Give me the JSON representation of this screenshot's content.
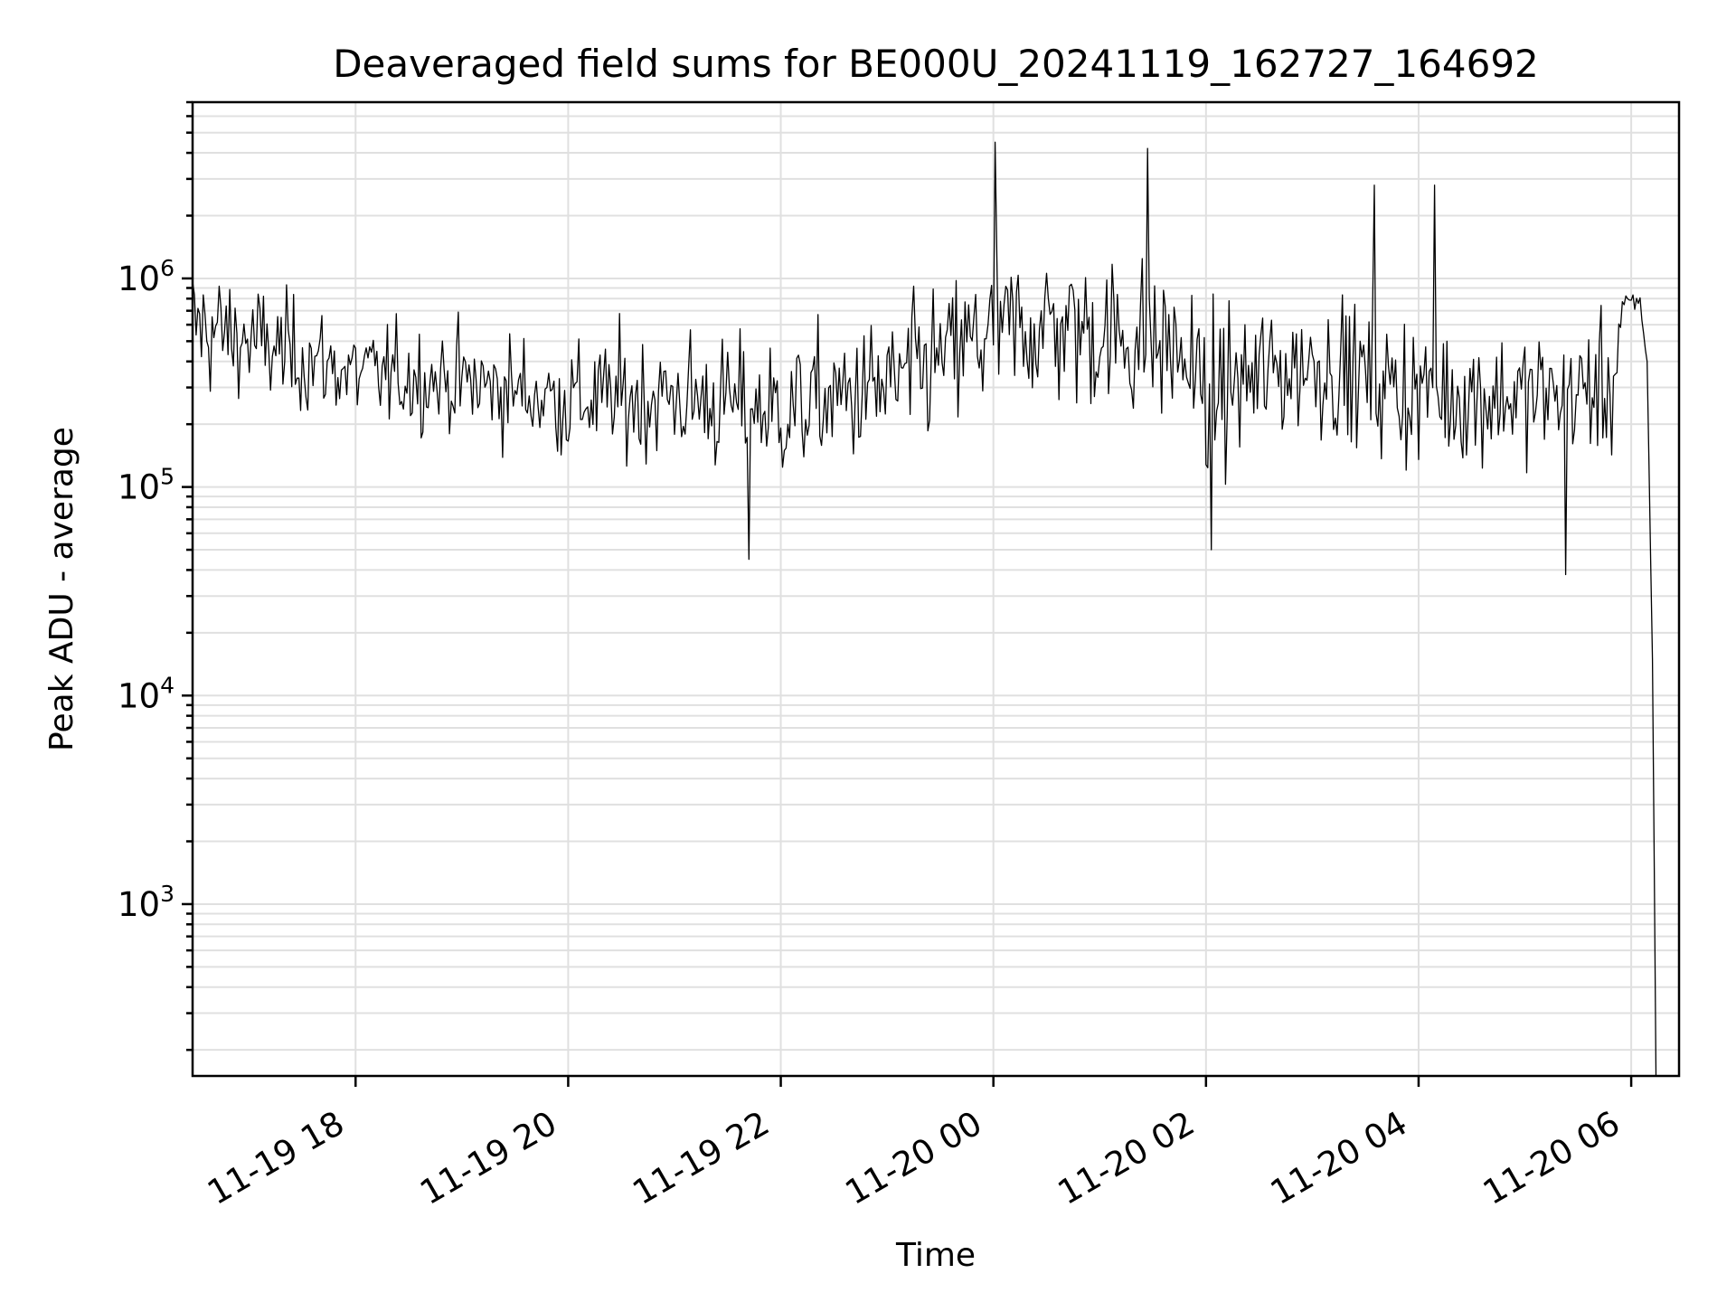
{
  "chart_data": {
    "type": "line",
    "title": "Deaveraged field sums for BE000U_20241119_162727_164692",
    "xlabel": "Time",
    "ylabel": "Peak ADU - average",
    "yscale": "log",
    "ylim": [
      150,
      7000000
    ],
    "xlim": [
      "2024-11-19T16:28",
      "2024-11-20T06:27"
    ],
    "grid": true,
    "line_color": "#000000",
    "x_ticks": [
      {
        "t": "2024-11-19T18:00",
        "label": "11-19 18"
      },
      {
        "t": "2024-11-19T20:00",
        "label": "11-19 20"
      },
      {
        "t": "2024-11-19T22:00",
        "label": "11-19 22"
      },
      {
        "t": "2024-11-20T00:00",
        "label": "11-20 00"
      },
      {
        "t": "2024-11-20T02:00",
        "label": "11-20 02"
      },
      {
        "t": "2024-11-20T04:00",
        "label": "11-20 04"
      },
      {
        "t": "2024-11-20T06:00",
        "label": "11-20 06"
      }
    ],
    "y_ticks": [
      {
        "value": 1000,
        "base": "10",
        "exp": "3"
      },
      {
        "value": 10000,
        "base": "10",
        "exp": "4"
      },
      {
        "value": 100000,
        "base": "10",
        "exp": "5"
      },
      {
        "value": 1000000,
        "base": "10",
        "exp": "6"
      }
    ],
    "series": [
      {
        "x_start": "2024-11-19T16:28",
        "sample_interval_minutes": 1,
        "envelope": [
          {
            "t": "2024-11-19T16:28",
            "median": 600000,
            "spread_dex": 0.22
          },
          {
            "t": "2024-11-19T17:00",
            "median": 500000,
            "spread_dex": 0.2
          },
          {
            "t": "2024-11-19T18:00",
            "median": 350000,
            "spread_dex": 0.17
          },
          {
            "t": "2024-11-19T19:00",
            "median": 320000,
            "spread_dex": 0.17
          },
          {
            "t": "2024-11-19T20:00",
            "median": 260000,
            "spread_dex": 0.2
          },
          {
            "t": "2024-11-19T21:00",
            "median": 270000,
            "spread_dex": 0.22
          },
          {
            "t": "2024-11-19T22:00",
            "median": 230000,
            "spread_dex": 0.23
          },
          {
            "t": "2024-11-19T23:00",
            "median": 300000,
            "spread_dex": 0.24
          },
          {
            "t": "2024-11-20T00:00",
            "median": 550000,
            "spread_dex": 0.26
          },
          {
            "t": "2024-11-20T00:30",
            "median": 600000,
            "spread_dex": 0.26
          },
          {
            "t": "2024-11-20T01:00",
            "median": 550000,
            "spread_dex": 0.27
          },
          {
            "t": "2024-11-20T01:45",
            "median": 450000,
            "spread_dex": 0.27
          },
          {
            "t": "2024-11-20T02:00",
            "median": 280000,
            "spread_dex": 0.26
          },
          {
            "t": "2024-11-20T03:00",
            "median": 400000,
            "spread_dex": 0.24
          },
          {
            "t": "2024-11-20T04:00",
            "median": 280000,
            "spread_dex": 0.24
          },
          {
            "t": "2024-11-20T05:00",
            "median": 270000,
            "spread_dex": 0.22
          },
          {
            "t": "2024-11-20T05:50",
            "median": 300000,
            "spread_dex": 0.22
          },
          {
            "t": "2024-11-20T05:55",
            "median": 750000,
            "spread_dex": 0.04
          },
          {
            "t": "2024-11-20T06:05",
            "median": 750000,
            "spread_dex": 0.04
          },
          {
            "t": "2024-11-20T06:09",
            "median": 400000,
            "spread_dex": 0.0
          },
          {
            "t": "2024-11-20T06:12",
            "median": 15000,
            "spread_dex": 0.0
          },
          {
            "t": "2024-11-20T06:14",
            "median": 150,
            "spread_dex": 0.0
          }
        ],
        "noted_peaks": [
          {
            "t": "2024-11-20T00:01",
            "value": 4500000
          },
          {
            "t": "2024-11-20T01:27",
            "value": 4200000
          },
          {
            "t": "2024-11-20T03:35",
            "value": 2800000
          },
          {
            "t": "2024-11-20T04:09",
            "value": 2800000
          }
        ],
        "noted_dips": [
          {
            "t": "2024-11-19T21:42",
            "value": 45000
          },
          {
            "t": "2024-11-20T02:03",
            "value": 50000
          },
          {
            "t": "2024-11-20T05:23",
            "value": 38000
          }
        ]
      }
    ]
  }
}
